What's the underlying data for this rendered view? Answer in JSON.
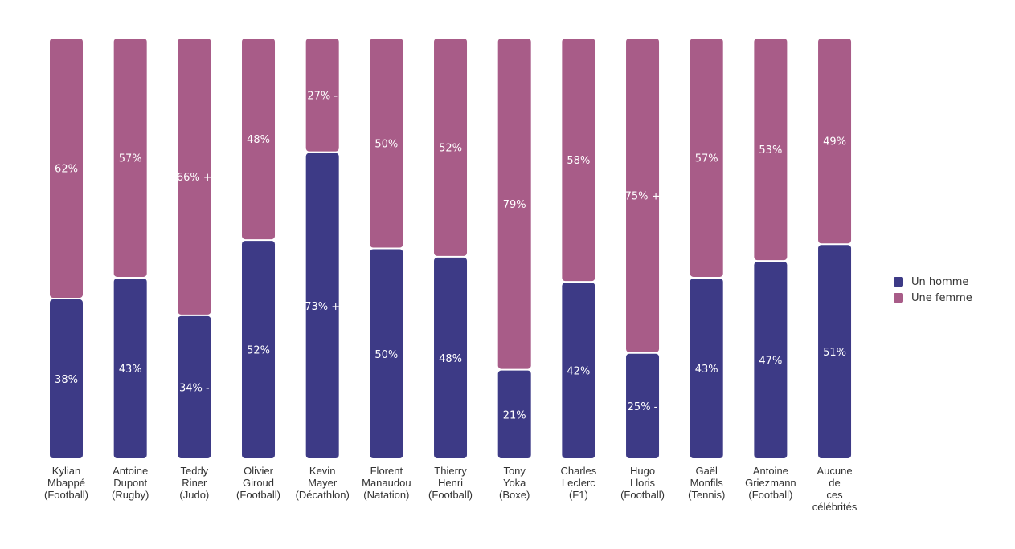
{
  "chart_data": {
    "type": "bar",
    "stacked": true,
    "normalized_percent": true,
    "categories": [
      [
        "Kylian",
        "Mbappé",
        "(Football)"
      ],
      [
        "Antoine",
        "Dupont",
        "(Rugby)"
      ],
      [
        "Teddy",
        "Riner",
        "(Judo)"
      ],
      [
        "Olivier",
        "Giroud",
        "(Football)"
      ],
      [
        "Kevin",
        "Mayer",
        "(Décathlon)"
      ],
      [
        "Florent",
        "Manaudou",
        "(Natation)"
      ],
      [
        "Thierry",
        "Henri",
        "(Football)"
      ],
      [
        "Tony",
        "Yoka",
        "(Boxe)"
      ],
      [
        "Charles",
        "Leclerc",
        "(F1)"
      ],
      [
        "Hugo",
        "Lloris",
        "(Football)"
      ],
      [
        "Gaël",
        "Monfils",
        "(Tennis)"
      ],
      [
        "Antoine",
        "Griezmann",
        "(Football)"
      ],
      [
        "Aucune",
        "de",
        "ces",
        "célébrités"
      ]
    ],
    "series": [
      {
        "name": "Un homme",
        "color": "#3d3a86",
        "values": [
          38,
          43,
          34,
          52,
          73,
          50,
          48,
          21,
          42,
          25,
          43,
          47,
          51
        ],
        "markers": [
          "",
          "",
          "-",
          "",
          "+",
          "",
          "",
          "",
          "",
          "-",
          "",
          "",
          ""
        ]
      },
      {
        "name": "Une femme",
        "color": "#a85c88",
        "values": [
          62,
          57,
          66,
          48,
          27,
          50,
          52,
          79,
          58,
          75,
          57,
          53,
          49
        ],
        "markers": [
          "",
          "",
          "+",
          "",
          "-",
          "",
          "",
          "",
          "",
          "+",
          "",
          "",
          ""
        ]
      }
    ],
    "ylim": [
      0,
      100
    ],
    "legend_position": "right"
  }
}
